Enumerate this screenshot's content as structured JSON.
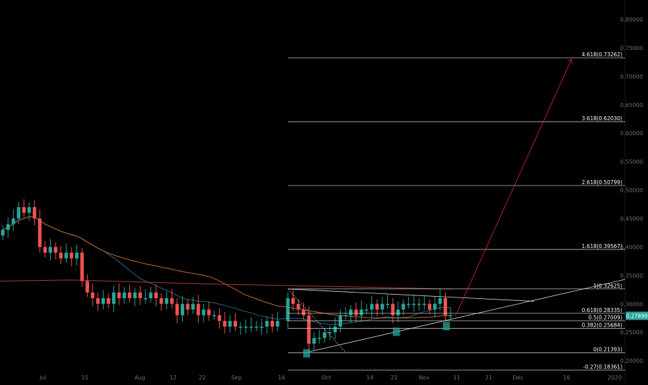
{
  "chart_data": {
    "type": "candlestick",
    "title": "",
    "xlabel": "",
    "ylabel": "",
    "ylim": [
      0.18,
      0.82
    ],
    "grid": false,
    "y_ticks": [
      "0.80000",
      "0.75000",
      "0.70000",
      "0.65000",
      "0.60000",
      "0.55000",
      "0.50000",
      "0.45000",
      "0.40000",
      "0.35000",
      "0.30000",
      "0.25000",
      "0.20000"
    ],
    "x_ticks": [
      "Jul",
      "15",
      "Aug",
      "12",
      "22",
      "Sep",
      "16",
      "Oct",
      "14",
      "21",
      "Nov",
      "11",
      "21",
      "Dec",
      "16",
      "2020"
    ],
    "current_price": "0.27899",
    "colors": {
      "up": "#26a69a",
      "down": "#ef5350",
      "price_tag": "#26a69a",
      "ma_blue": "#1f6f8b",
      "ma_orange": "#c76a2a",
      "ma_red": "#b3392e",
      "fib": "#bfbfbf",
      "projection": "#c62828"
    },
    "fib_levels": [
      {
        "label": "4.618(0.73262)",
        "value": 0.73262
      },
      {
        "label": "3.618(0.62030)",
        "value": 0.6203
      },
      {
        "label": "2.618(0.50799)",
        "value": 0.50799
      },
      {
        "label": "1.618(0.39567)",
        "value": 0.39567
      },
      {
        "label": "1(0.32625)",
        "value": 0.32625
      },
      {
        "label": "0.618(0.28335)",
        "value": 0.28335
      },
      {
        "label": "0.5(0.27009)",
        "value": 0.27009
      },
      {
        "label": "0.382(0.25684)",
        "value": 0.25684
      },
      {
        "label": "0(0.21393)",
        "value": 0.21393
      },
      {
        "label": "-0.27(0.18361)",
        "value": 0.18361
      }
    ],
    "close_series": [
      0.43,
      0.44,
      0.45,
      0.47,
      0.46,
      0.47,
      0.45,
      0.4,
      0.39,
      0.4,
      0.39,
      0.38,
      0.39,
      0.38,
      0.39,
      0.34,
      0.32,
      0.31,
      0.3,
      0.31,
      0.3,
      0.32,
      0.31,
      0.32,
      0.31,
      0.32,
      0.31,
      0.31,
      0.32,
      0.31,
      0.3,
      0.31,
      0.3,
      0.28,
      0.3,
      0.29,
      0.3,
      0.28,
      0.29,
      0.28,
      0.28,
      0.27,
      0.26,
      0.27,
      0.26,
      0.26,
      0.26,
      0.26,
      0.26,
      0.26,
      0.27,
      0.26,
      0.27,
      0.31,
      0.3,
      0.29,
      0.28,
      0.23,
      0.24,
      0.24,
      0.25,
      0.25,
      0.26,
      0.28,
      0.28,
      0.29,
      0.28,
      0.29,
      0.29,
      0.3,
      0.29,
      0.3,
      0.3,
      0.28,
      0.29,
      0.3,
      0.3,
      0.3,
      0.3,
      0.3,
      0.29,
      0.3,
      0.31,
      0.28,
      0.28
    ]
  }
}
